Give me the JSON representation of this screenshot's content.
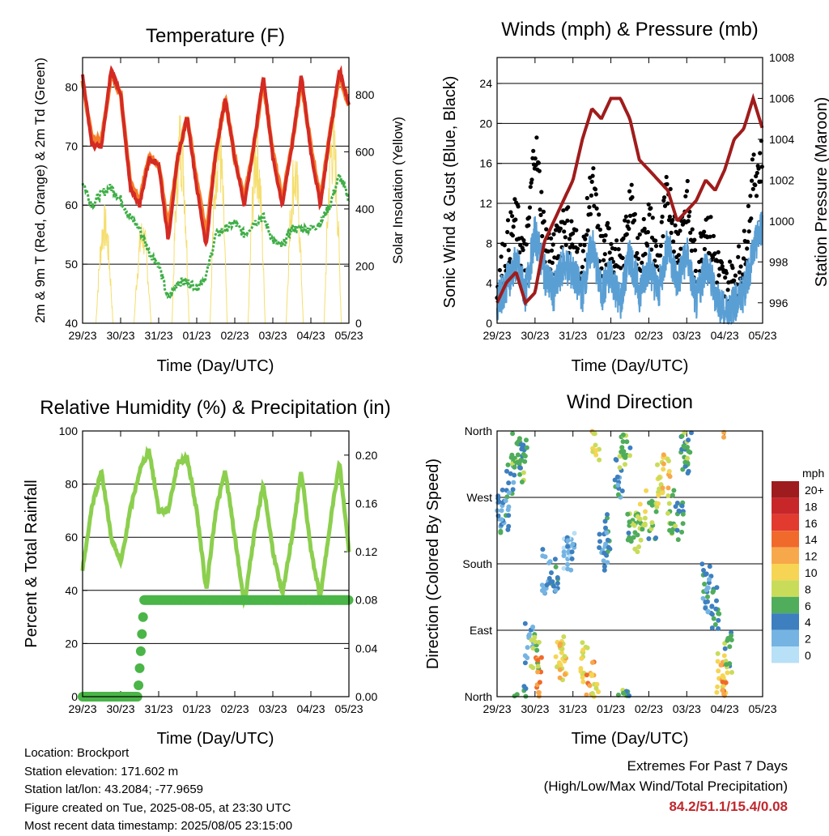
{
  "colors": {
    "temp2m": "#d42a24",
    "temp9m": "#f47e2a",
    "dewpoint": "#3fae47",
    "solar": "#f5de6e",
    "gust": "#000000",
    "wind": "#5a9fd4",
    "pressure": "#a01c1c",
    "rh": "#8ccf4f",
    "precip": "#4bb548",
    "extremes": "#c0272d"
  },
  "x_ticks": [
    "29/23",
    "30/23",
    "31/23",
    "01/23",
    "02/23",
    "03/23",
    "04/23",
    "05/23"
  ],
  "panels": {
    "temperature": {
      "title": "Temperature (F)",
      "xlabel": "Time (Day/UTC)",
      "ylabel_left": "2m & 9m T (Red, Orange) & 2m Td (Green)",
      "ylabel_right": "Solar Insolation (Yellow)",
      "yticks_left": [
        "40",
        "50",
        "60",
        "70",
        "80"
      ],
      "yticks_right": [
        "0",
        "200",
        "400",
        "600",
        "800"
      ]
    },
    "winds": {
      "title": "Winds (mph) & Pressure (mb)",
      "xlabel": "Time (Day/UTC)",
      "ylabel_left": "Sonic Wind & Gust (Blue, Black)",
      "ylabel_right": "Station Pressure (Maroon)",
      "yticks_left": [
        "0",
        "4",
        "8",
        "12",
        "16",
        "20",
        "24"
      ],
      "yticks_right": [
        "996",
        "998",
        "1000",
        "1002",
        "1004",
        "1006",
        "1008"
      ]
    },
    "humidity": {
      "title": "Relative Humidity (%) & Precipitation (in)",
      "xlabel": "Time (Day/UTC)",
      "ylabel_left": "Percent & Total Rainfall",
      "yticks_left": [
        "0",
        "20",
        "40",
        "60",
        "80",
        "100"
      ],
      "yticks_right": [
        "0.00",
        "0.04",
        "0.08",
        "0.12",
        "0.16",
        "0.20"
      ]
    },
    "direction": {
      "title": "Wind Direction",
      "xlabel": "Time (Day/UTC)",
      "ylabel_left": "Direction (Colored By Speed)",
      "yticks_left": [
        "North",
        "East",
        "South",
        "West",
        "North"
      ],
      "legend_title": "mph",
      "legend_labels": [
        "20+",
        "18",
        "16",
        "14",
        "12",
        "10",
        "8",
        "6",
        "4",
        "2",
        "0"
      ],
      "legend_colors": [
        "#9e1c1d",
        "#c8272a",
        "#e23a2f",
        "#f06a2c",
        "#f7a84a",
        "#f5d553",
        "#c9dc5a",
        "#4fad5b",
        "#3d7fbf",
        "#75b4e2",
        "#b8e0f6"
      ]
    }
  },
  "info": {
    "location": "Location: Brockport",
    "elevation": "Station elevation: 171.602 m",
    "latlon": "Station lat/lon: 43.2084; -77.9659",
    "created": "Figure created on Tue, 2025-08-05, at 23:30 UTC",
    "recent": "Most recent data timestamp: 2025/08/05 23:15:00"
  },
  "extremes": {
    "title": "Extremes For Past 7 Days",
    "subtitle": "(High/Low/Max Wind/Total Precipitation)",
    "values": "84.2/51.1/15.4/0.08"
  },
  "chart_data": [
    {
      "type": "line",
      "title": "Temperature (F)",
      "xlabel": "Time (Day/UTC)",
      "ylabel": "2m & 9m T (Red, Orange) & 2m Td (Green)",
      "y2label": "Solar Insolation (Yellow)",
      "xlim": [
        0,
        7
      ],
      "ylim": [
        40,
        90
      ],
      "y2lim": [
        0,
        800
      ],
      "x": [
        0,
        0.25,
        0.5,
        0.75,
        1,
        1.25,
        1.5,
        1.75,
        2,
        2.25,
        2.5,
        2.75,
        3,
        3.25,
        3.5,
        3.75,
        4,
        4.25,
        4.5,
        4.75,
        5,
        5.25,
        5.5,
        5.75,
        6,
        6.25,
        6.5,
        6.75,
        7
      ],
      "series": [
        {
          "name": "2m T",
          "values": [
            82,
            70,
            70,
            83,
            79,
            63,
            60,
            68,
            67,
            54,
            68,
            75,
            63,
            53,
            69,
            78,
            68,
            60,
            70,
            82,
            68,
            60,
            70,
            82,
            69,
            60,
            72,
            83,
            77
          ]
        },
        {
          "name": "9m T",
          "values": [
            81,
            71,
            71,
            82,
            79,
            64,
            61,
            68,
            67,
            56,
            68,
            75,
            64,
            55,
            69,
            78,
            68,
            61,
            70,
            81,
            69,
            61,
            70,
            81,
            70,
            61,
            72,
            82,
            77
          ]
        },
        {
          "name": "2m Td",
          "values": [
            64,
            60,
            62,
            63,
            61,
            58,
            56,
            52,
            50,
            44,
            47,
            47,
            46,
            48,
            55,
            56,
            57,
            55,
            57,
            58,
            54,
            53,
            56,
            56,
            56,
            57,
            60,
            65,
            61
          ]
        },
        {
          "name": "Solar",
          "axis": "y2",
          "values": [
            0,
            0,
            420,
            0,
            0,
            0,
            380,
            0,
            0,
            0,
            780,
            0,
            0,
            0,
            760,
            0,
            0,
            0,
            720,
            0,
            0,
            0,
            640,
            0,
            0,
            0,
            770,
            0,
            0
          ]
        }
      ]
    },
    {
      "type": "line",
      "title": "Winds (mph) & Pressure (mb)",
      "xlabel": "Time (Day/UTC)",
      "ylabel": "Sonic Wind & Gust (Blue, Black)",
      "y2label": "Station Pressure (Maroon)",
      "xlim": [
        0,
        7
      ],
      "ylim": [
        0,
        27
      ],
      "y2lim": [
        995,
        1008
      ],
      "x": [
        0,
        0.25,
        0.5,
        0.75,
        1,
        1.25,
        1.5,
        1.75,
        2,
        2.25,
        2.5,
        2.75,
        3,
        3.25,
        3.5,
        3.75,
        4,
        4.25,
        4.5,
        4.75,
        5,
        5.25,
        5.5,
        5.75,
        6,
        6.25,
        6.5,
        6.75,
        7
      ],
      "series": [
        {
          "name": "Gust",
          "values": [
            3,
            7,
            10,
            5,
            18,
            8,
            6,
            10,
            8,
            5,
            14,
            6,
            8,
            4,
            12,
            6,
            10,
            5,
            13,
            7,
            12,
            4,
            10,
            6,
            3,
            4,
            6,
            14,
            16
          ]
        },
        {
          "name": "Wind",
          "values": [
            2,
            4,
            6,
            3,
            9,
            5,
            3,
            6,
            5,
            3,
            8,
            3,
            5,
            2,
            7,
            3,
            6,
            3,
            8,
            4,
            7,
            2,
            6,
            3,
            1,
            2,
            3,
            7,
            10
          ]
        },
        {
          "name": "Pressure",
          "axis": "y2",
          "values": [
            996,
            997,
            997.5,
            996,
            996.5,
            999,
            1000,
            1001,
            1002,
            1004,
            1005.5,
            1005,
            1006,
            1006,
            1005,
            1003,
            1002.5,
            1002,
            1001.5,
            1000,
            1000.5,
            1001,
            1002,
            1001.5,
            1002.5,
            1004,
            1004.5,
            1006,
            1004.5
          ]
        }
      ]
    },
    {
      "type": "line",
      "title": "Relative Humidity (%) & Precipitation (in)",
      "xlabel": "Time (Day/UTC)",
      "ylabel": "Percent & Total Rainfall",
      "xlim": [
        0,
        7
      ],
      "ylim": [
        0,
        100
      ],
      "y2lim": [
        0,
        0.22
      ],
      "x": [
        0,
        0.25,
        0.5,
        0.75,
        1,
        1.25,
        1.5,
        1.75,
        2,
        2.25,
        2.5,
        2.75,
        3,
        3.25,
        3.5,
        3.75,
        4,
        4.25,
        4.5,
        4.75,
        5,
        5.25,
        5.5,
        5.75,
        6,
        6.25,
        6.5,
        6.75,
        7
      ],
      "series": [
        {
          "name": "Relative Humidity",
          "values": [
            48,
            72,
            85,
            60,
            50,
            70,
            85,
            93,
            70,
            70,
            88,
            90,
            70,
            40,
            70,
            85,
            60,
            35,
            60,
            80,
            55,
            38,
            60,
            85,
            55,
            37,
            65,
            88,
            55
          ]
        },
        {
          "name": "Total Precipitation",
          "axis": "y2",
          "values": [
            0,
            0,
            0,
            0,
            0,
            0,
            0.02,
            0.08,
            0.08,
            0.08,
            0.08,
            0.08,
            0.08,
            0.08,
            0.08,
            0.08,
            0.08,
            0.08,
            0.08,
            0.08,
            0.08,
            0.08,
            0.08,
            0.08,
            0.08,
            0.08,
            0.08,
            0.08,
            0.08
          ]
        }
      ]
    },
    {
      "type": "scatter",
      "title": "Wind Direction",
      "xlabel": "Time (Day/UTC)",
      "ylabel": "Direction (Colored By Speed)",
      "xlim": [
        0,
        7
      ],
      "ylim": [
        0,
        360
      ],
      "points": [
        [
          0.1,
          260,
          3
        ],
        [
          0.2,
          250,
          4
        ],
        [
          0.35,
          300,
          4
        ],
        [
          0.5,
          340,
          7
        ],
        [
          0.6,
          320,
          6
        ],
        [
          0.7,
          345,
          5
        ],
        [
          0.85,
          70,
          3
        ],
        [
          1.0,
          60,
          7
        ],
        [
          1.1,
          30,
          13
        ],
        [
          1.3,
          170,
          3
        ],
        [
          1.5,
          170,
          4
        ],
        [
          1.65,
          50,
          9
        ],
        [
          1.75,
          55,
          10
        ],
        [
          1.85,
          190,
          1
        ],
        [
          1.95,
          205,
          2
        ],
        [
          2.3,
          50,
          9
        ],
        [
          2.45,
          25,
          12
        ],
        [
          2.6,
          350,
          9
        ],
        [
          2.8,
          200,
          3
        ],
        [
          2.9,
          220,
          4
        ],
        [
          3.2,
          300,
          4
        ],
        [
          3.3,
          340,
          8
        ],
        [
          3.4,
          350,
          6
        ],
        [
          3.55,
          230,
          6
        ],
        [
          3.7,
          225,
          7
        ],
        [
          3.85,
          250,
          8
        ],
        [
          4.1,
          240,
          6
        ],
        [
          4.3,
          290,
          9
        ],
        [
          4.45,
          300,
          10
        ],
        [
          4.6,
          250,
          7
        ],
        [
          4.8,
          240,
          5
        ],
        [
          4.95,
          330,
          5
        ],
        [
          5.05,
          340,
          6
        ],
        [
          5.5,
          150,
          4
        ],
        [
          5.6,
          140,
          3
        ],
        [
          5.75,
          120,
          5
        ],
        [
          5.9,
          30,
          10
        ],
        [
          6.0,
          20,
          12
        ],
        [
          6.1,
          60,
          6
        ]
      ]
    }
  ]
}
